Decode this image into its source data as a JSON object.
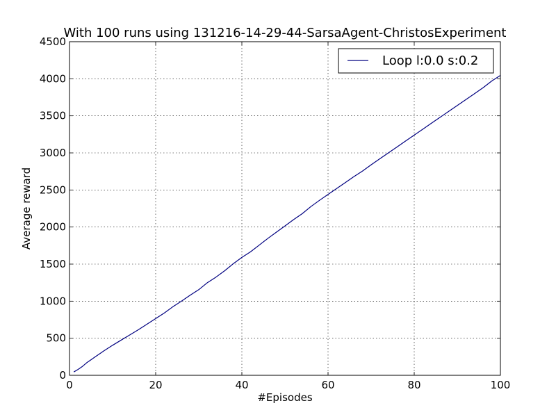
{
  "chart_data": {
    "type": "line",
    "title": "With 100 runs using 131216-14-29-44-SarsaAgent-ChristosExperiment",
    "xlabel": "#Episodes",
    "ylabel": "Average reward",
    "xlim": [
      0,
      100
    ],
    "ylim": [
      0,
      4500
    ],
    "xticks": [
      0,
      20,
      40,
      60,
      80,
      100
    ],
    "yticks": [
      0,
      500,
      1000,
      1500,
      2000,
      2500,
      3000,
      3500,
      4000,
      4500
    ],
    "grid": true,
    "legend_position": "top-right",
    "series": [
      {
        "name": "Loop l:0.0 s:0.2",
        "color": "#000080",
        "x": [
          1,
          2,
          3,
          4,
          5,
          6,
          8,
          10,
          12,
          14,
          16,
          18,
          20,
          22,
          24,
          26,
          28,
          30,
          32,
          34,
          36,
          38,
          40,
          42,
          44,
          46,
          48,
          50,
          52,
          54,
          56,
          58,
          60,
          62,
          64,
          66,
          68,
          70,
          72,
          74,
          76,
          78,
          80,
          82,
          84,
          86,
          88,
          90,
          92,
          94,
          96,
          98,
          100
        ],
        "y": [
          45,
          80,
          120,
          170,
          210,
          250,
          330,
          405,
          475,
          545,
          615,
          690,
          765,
          840,
          925,
          1000,
          1080,
          1155,
          1250,
          1325,
          1410,
          1505,
          1590,
          1665,
          1755,
          1845,
          1930,
          2015,
          2100,
          2180,
          2275,
          2360,
          2440,
          2520,
          2600,
          2680,
          2755,
          2840,
          2920,
          3000,
          3080,
          3160,
          3240,
          3320,
          3400,
          3480,
          3560,
          3640,
          3720,
          3800,
          3880,
          3970,
          4045
        ]
      }
    ]
  }
}
